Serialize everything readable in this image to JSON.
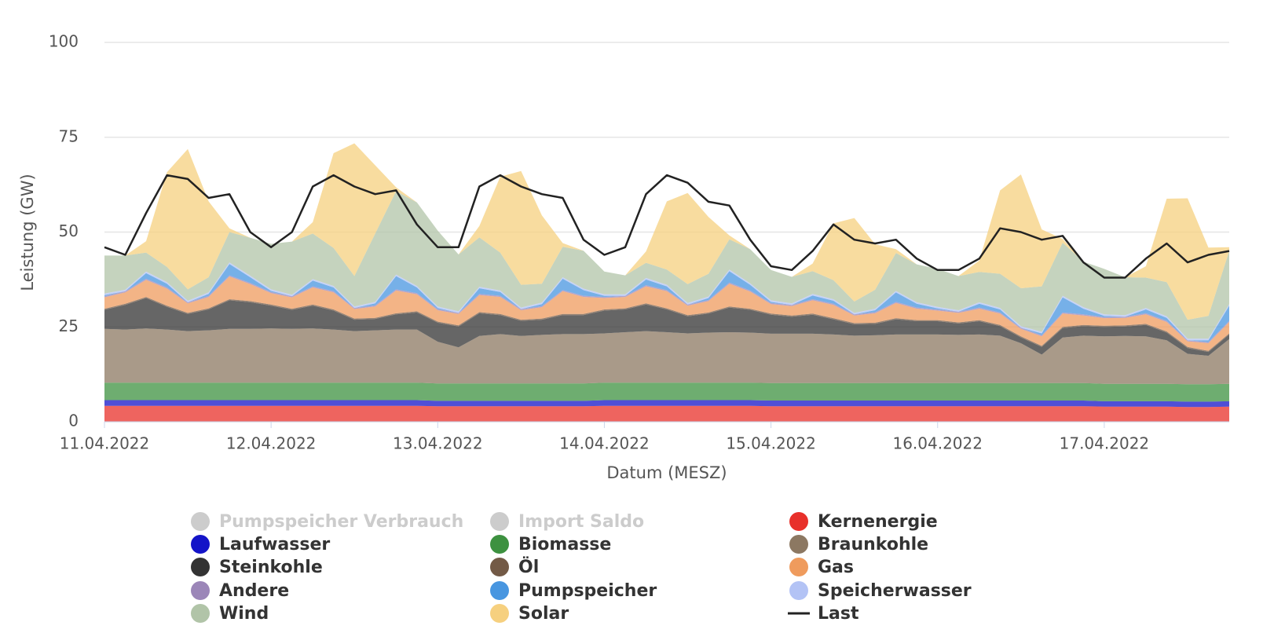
{
  "chart_data": {
    "type": "area",
    "stacked": true,
    "xlabel": "Datum (MESZ)",
    "ylabel": "Leistung (GW)",
    "grid": true,
    "xlim": [
      "2022-04-11T00:00",
      "2022-04-17T18:00"
    ],
    "xticks": [
      {
        "value": "2022-04-11T00:00",
        "label": "11.04.2022"
      },
      {
        "value": "2022-04-12T00:00",
        "label": "12.04.2022"
      },
      {
        "value": "2022-04-13T00:00",
        "label": "13.04.2022"
      },
      {
        "value": "2022-04-14T00:00",
        "label": "14.04.2022"
      },
      {
        "value": "2022-04-15T00:00",
        "label": "15.04.2022"
      },
      {
        "value": "2022-04-16T00:00",
        "label": "16.04.2022"
      },
      {
        "value": "2022-04-17T00:00",
        "label": "17.04.2022"
      }
    ],
    "ylim": [
      0,
      100
    ],
    "yticks": [
      0,
      25,
      50,
      75,
      100
    ],
    "x": [
      "2022-04-11T00:00",
      "2022-04-11T03:00",
      "2022-04-11T06:00",
      "2022-04-11T09:00",
      "2022-04-11T12:00",
      "2022-04-11T15:00",
      "2022-04-11T18:00",
      "2022-04-11T21:00",
      "2022-04-12T00:00",
      "2022-04-12T03:00",
      "2022-04-12T06:00",
      "2022-04-12T09:00",
      "2022-04-12T12:00",
      "2022-04-12T15:00",
      "2022-04-12T18:00",
      "2022-04-12T21:00",
      "2022-04-13T00:00",
      "2022-04-13T03:00",
      "2022-04-13T06:00",
      "2022-04-13T09:00",
      "2022-04-13T12:00",
      "2022-04-13T15:00",
      "2022-04-13T18:00",
      "2022-04-13T21:00",
      "2022-04-14T00:00",
      "2022-04-14T03:00",
      "2022-04-14T06:00",
      "2022-04-14T09:00",
      "2022-04-14T12:00",
      "2022-04-14T15:00",
      "2022-04-14T18:00",
      "2022-04-14T21:00",
      "2022-04-15T00:00",
      "2022-04-15T03:00",
      "2022-04-15T06:00",
      "2022-04-15T09:00",
      "2022-04-15T12:00",
      "2022-04-15T15:00",
      "2022-04-15T18:00",
      "2022-04-15T21:00",
      "2022-04-16T00:00",
      "2022-04-16T03:00",
      "2022-04-16T06:00",
      "2022-04-16T09:00",
      "2022-04-16T12:00",
      "2022-04-16T15:00",
      "2022-04-16T18:00",
      "2022-04-16T21:00",
      "2022-04-17T00:00",
      "2022-04-17T03:00",
      "2022-04-17T06:00",
      "2022-04-17T09:00",
      "2022-04-17T12:00",
      "2022-04-17T15:00",
      "2022-04-17T18:00"
    ],
    "series": [
      {
        "name": "Pumpspeicher Verbrauch",
        "color": "#4896e0",
        "visible": false
      },
      {
        "name": "Import Saldo",
        "color": "#999999",
        "visible": false
      },
      {
        "name": "Kernenergie",
        "color": "#e8302a",
        "values": [
          4.2,
          4.2,
          4.2,
          4.2,
          4.2,
          4.2,
          4.2,
          4.2,
          4.2,
          4.2,
          4.2,
          4.2,
          4.2,
          4.2,
          4.2,
          4.2,
          4.1,
          4.1,
          4.1,
          4.1,
          4.1,
          4.1,
          4.1,
          4.1,
          4.2,
          4.2,
          4.2,
          4.2,
          4.2,
          4.2,
          4.2,
          4.2,
          4.1,
          4.1,
          4.1,
          4.1,
          4.1,
          4.1,
          4.1,
          4.1,
          4.1,
          4.1,
          4.1,
          4.1,
          4.1,
          4.1,
          4.1,
          4.1,
          4.0,
          4.0,
          4.0,
          4.0,
          3.9,
          3.9,
          4.0
        ]
      },
      {
        "name": "Laufwasser",
        "color": "#1414c8",
        "values": [
          1.5,
          1.5,
          1.5,
          1.5,
          1.5,
          1.5,
          1.5,
          1.5,
          1.5,
          1.5,
          1.5,
          1.5,
          1.5,
          1.5,
          1.5,
          1.5,
          1.4,
          1.4,
          1.4,
          1.4,
          1.4,
          1.4,
          1.4,
          1.4,
          1.5,
          1.5,
          1.5,
          1.5,
          1.5,
          1.5,
          1.5,
          1.5,
          1.5,
          1.5,
          1.5,
          1.5,
          1.5,
          1.5,
          1.5,
          1.5,
          1.5,
          1.5,
          1.5,
          1.5,
          1.5,
          1.5,
          1.5,
          1.5,
          1.4,
          1.4,
          1.4,
          1.4,
          1.4,
          1.4,
          1.4
        ]
      },
      {
        "name": "Biomasse",
        "color": "#3d9140",
        "values": [
          4.6,
          4.6,
          4.6,
          4.6,
          4.6,
          4.6,
          4.6,
          4.6,
          4.6,
          4.6,
          4.6,
          4.6,
          4.6,
          4.6,
          4.6,
          4.6,
          4.6,
          4.6,
          4.6,
          4.6,
          4.6,
          4.6,
          4.6,
          4.6,
          4.6,
          4.6,
          4.6,
          4.6,
          4.6,
          4.6,
          4.6,
          4.6,
          4.6,
          4.6,
          4.6,
          4.6,
          4.6,
          4.6,
          4.6,
          4.6,
          4.6,
          4.6,
          4.6,
          4.6,
          4.6,
          4.6,
          4.6,
          4.6,
          4.6,
          4.6,
          4.6,
          4.6,
          4.6,
          4.6,
          4.6
        ]
      },
      {
        "name": "Braunkohle",
        "color": "#8c7862",
        "values": [
          14.2,
          14.0,
          14.3,
          14.0,
          13.6,
          13.8,
          14.2,
          14.2,
          14.3,
          14.2,
          14.3,
          14.0,
          13.6,
          13.8,
          14.0,
          14.0,
          11.0,
          9.5,
          12.5,
          13.0,
          12.5,
          12.8,
          13.0,
          13.0,
          13.0,
          13.3,
          13.6,
          13.3,
          13.0,
          13.2,
          13.3,
          13.2,
          13.0,
          13.0,
          13.0,
          12.8,
          12.5,
          12.6,
          12.8,
          12.8,
          12.8,
          12.7,
          12.8,
          12.5,
          10.5,
          7.5,
          12.0,
          12.5,
          12.5,
          12.6,
          12.5,
          11.5,
          8.0,
          7.5,
          11.8
        ]
      },
      {
        "name": "Steinkohle",
        "color": "#333333",
        "values": [
          5.0,
          6.5,
          8.0,
          6.0,
          4.5,
          5.5,
          7.5,
          7.0,
          6.0,
          5.0,
          6.0,
          5.0,
          3.0,
          3.0,
          4.0,
          4.5,
          5.0,
          5.5,
          6.0,
          5.0,
          4.0,
          4.0,
          5.0,
          5.0,
          6.0,
          6.0,
          7.0,
          6.0,
          4.5,
          5.0,
          6.5,
          6.0,
          5.0,
          4.5,
          5.0,
          4.0,
          3.0,
          3.0,
          4.0,
          3.5,
          3.5,
          3.0,
          3.5,
          2.5,
          1.5,
          2.0,
          2.5,
          2.5,
          2.5,
          2.5,
          3.0,
          2.0,
          1.5,
          1.0,
          1.2
        ]
      },
      {
        "name": "Öl",
        "color": "#735a46",
        "values": [
          0.3,
          0.3,
          0.3,
          0.3,
          0.3,
          0.3,
          0.3,
          0.3,
          0.3,
          0.3,
          0.3,
          0.3,
          0.3,
          0.3,
          0.3,
          0.3,
          0.3,
          0.3,
          0.3,
          0.3,
          0.3,
          0.3,
          0.3,
          0.3,
          0.3,
          0.3,
          0.3,
          0.3,
          0.3,
          0.3,
          0.3,
          0.3,
          0.3,
          0.3,
          0.3,
          0.3,
          0.3,
          0.3,
          0.3,
          0.3,
          0.3,
          0.3,
          0.3,
          0.3,
          0.3,
          0.3,
          0.3,
          0.3,
          0.3,
          0.3,
          0.3,
          0.3,
          0.3,
          0.3,
          0.3
        ]
      },
      {
        "name": "Gas",
        "color": "#ef9b5d",
        "values": [
          3.0,
          3.0,
          4.5,
          4.5,
          2.5,
          3.0,
          6.0,
          4.5,
          3.0,
          3.0,
          4.5,
          4.5,
          2.5,
          3.0,
          6.0,
          4.5,
          3.0,
          3.0,
          4.5,
          4.5,
          2.5,
          3.0,
          6.0,
          4.5,
          3.0,
          3.0,
          4.5,
          4.5,
          2.5,
          3.0,
          6.0,
          4.5,
          2.5,
          2.5,
          3.5,
          3.5,
          2.0,
          2.5,
          4.0,
          3.0,
          2.5,
          2.5,
          3.0,
          3.0,
          2.0,
          2.5,
          3.5,
          2.5,
          2.0,
          2.0,
          2.5,
          2.5,
          1.5,
          2.0,
          3.0
        ]
      },
      {
        "name": "Andere",
        "color": "#9b86b8",
        "values": [
          0.3,
          0.3,
          0.3,
          0.3,
          0.3,
          0.3,
          0.3,
          0.3,
          0.3,
          0.3,
          0.3,
          0.3,
          0.3,
          0.3,
          0.3,
          0.3,
          0.3,
          0.3,
          0.3,
          0.3,
          0.3,
          0.3,
          0.3,
          0.3,
          0.3,
          0.3,
          0.3,
          0.3,
          0.3,
          0.3,
          0.3,
          0.3,
          0.3,
          0.3,
          0.3,
          0.3,
          0.3,
          0.3,
          0.3,
          0.3,
          0.3,
          0.3,
          0.3,
          0.3,
          0.3,
          0.3,
          0.3,
          0.3,
          0.3,
          0.3,
          0.3,
          0.3,
          0.3,
          0.3,
          0.3
        ]
      },
      {
        "name": "Pumpspeicher",
        "color": "#4896e0",
        "values": [
          0.3,
          0.0,
          1.5,
          1.0,
          0.0,
          0.5,
          3.0,
          1.5,
          0.3,
          0.0,
          1.5,
          1.0,
          0.0,
          0.5,
          3.5,
          1.5,
          0.3,
          0.0,
          1.5,
          1.0,
          0.0,
          0.5,
          3.0,
          1.5,
          0.3,
          0.0,
          1.5,
          1.0,
          0.0,
          0.5,
          3.0,
          1.5,
          0.3,
          0.0,
          1.0,
          0.8,
          0.0,
          0.5,
          2.5,
          1.0,
          0.3,
          0.0,
          1.0,
          0.8,
          0.0,
          0.5,
          4.0,
          1.5,
          0.3,
          0.0,
          1.0,
          0.8,
          0.0,
          0.5,
          4.0
        ]
      },
      {
        "name": "Speicherwasser",
        "color": "#b3c3f5",
        "values": [
          0.4,
          0.4,
          0.4,
          0.4,
          0.4,
          0.4,
          0.4,
          0.4,
          0.4,
          0.4,
          0.4,
          0.4,
          0.4,
          0.4,
          0.4,
          0.4,
          0.4,
          0.4,
          0.4,
          0.4,
          0.4,
          0.4,
          0.4,
          0.4,
          0.4,
          0.4,
          0.4,
          0.4,
          0.4,
          0.4,
          0.4,
          0.4,
          0.4,
          0.4,
          0.4,
          0.4,
          0.4,
          0.4,
          0.4,
          0.4,
          0.4,
          0.4,
          0.4,
          0.4,
          0.4,
          0.4,
          0.4,
          0.4,
          0.4,
          0.4,
          0.4,
          0.4,
          0.4,
          0.4,
          0.4
        ]
      },
      {
        "name": "Wind",
        "color": "#b1c4a8",
        "values": [
          10,
          9,
          5,
          4,
          3,
          4,
          8,
          10,
          12,
          14,
          12,
          10,
          8,
          18,
          22,
          22,
          20,
          15,
          13,
          10,
          6,
          5,
          8,
          10,
          6,
          5,
          4,
          4,
          5,
          6,
          8,
          9,
          8,
          7,
          6,
          5,
          3,
          5,
          10,
          10,
          10,
          9,
          8,
          9,
          10,
          12,
          14,
          12,
          12,
          10,
          8,
          9,
          5,
          6,
          14
        ]
      },
      {
        "name": "Solar",
        "color": "#f6d07f",
        "values": [
          0,
          0,
          3,
          25,
          37,
          20,
          1,
          0,
          0,
          0,
          3,
          25,
          35,
          18,
          1,
          0,
          0,
          0,
          3,
          20,
          30,
          18,
          1,
          0,
          0,
          0,
          3,
          18,
          24,
          15,
          1,
          0,
          0,
          0,
          2,
          15,
          22,
          12,
          1,
          0,
          0,
          0,
          3,
          22,
          30,
          15,
          1,
          0,
          0,
          0,
          3,
          22,
          32,
          18,
          1
        ]
      },
      {
        "name": "Last",
        "color": "#222222",
        "type": "line",
        "values": [
          46,
          44,
          55,
          65,
          64,
          59,
          60,
          50,
          46,
          50,
          62,
          65,
          62,
          60,
          61,
          52,
          46,
          46,
          62,
          65,
          62,
          60,
          59,
          48,
          44,
          46,
          60,
          65,
          63,
          58,
          57,
          48,
          41,
          40,
          45,
          52,
          48,
          47,
          48,
          43,
          40,
          40,
          43,
          51,
          50,
          48,
          49,
          42,
          38,
          38,
          43,
          47,
          42,
          44,
          45
        ]
      }
    ]
  }
}
